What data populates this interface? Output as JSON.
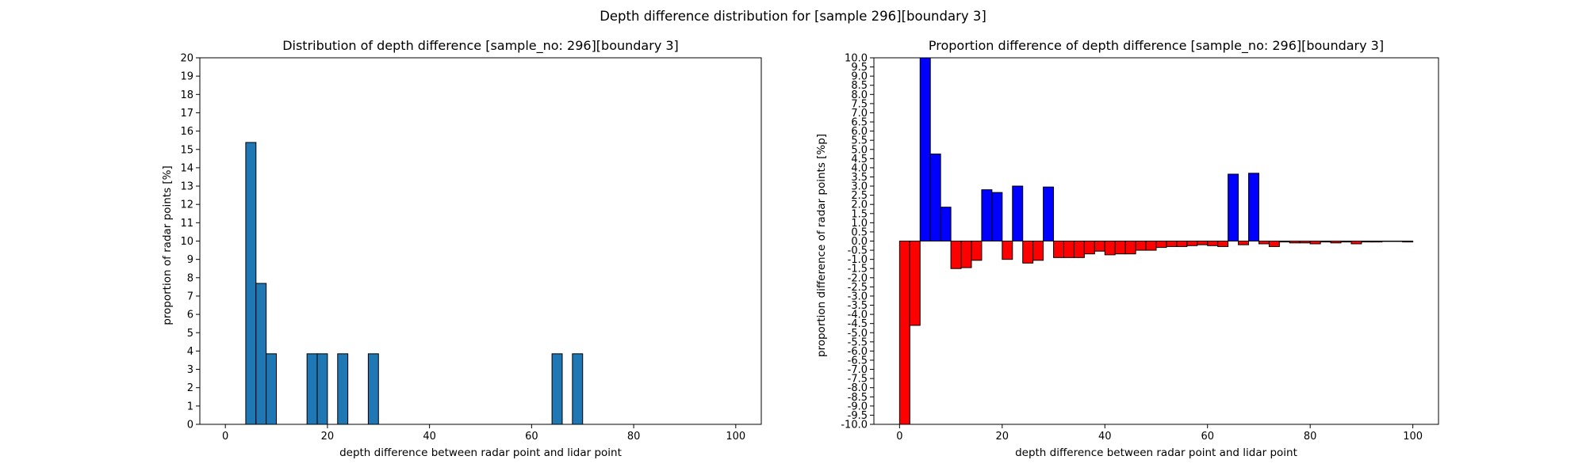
{
  "figure": {
    "suptitle": "Depth difference distribution for [sample 296][boundary 3]"
  },
  "chart_data": [
    {
      "type": "bar",
      "title": "Distribution of depth difference [sample_no: 296][boundary 3]",
      "xlabel": "depth difference between radar point and lidar point",
      "ylabel": "proportion of radar points [%]",
      "xlim": [
        -5,
        105
      ],
      "ylim": [
        0,
        20
      ],
      "x_ticks": [
        0,
        20,
        40,
        60,
        80,
        100
      ],
      "y_ticks": [
        0,
        1,
        2,
        3,
        4,
        5,
        6,
        7,
        8,
        9,
        10,
        11,
        12,
        13,
        14,
        15,
        16,
        17,
        18,
        19,
        20
      ],
      "bin_width": 2,
      "colors": {
        "bar": "#1f77b4",
        "edge": "#000000"
      },
      "bars": [
        {
          "x": 5,
          "value": 15.38
        },
        {
          "x": 7,
          "value": 7.69
        },
        {
          "x": 9,
          "value": 3.85
        },
        {
          "x": 17,
          "value": 3.85
        },
        {
          "x": 19,
          "value": 3.85
        },
        {
          "x": 23,
          "value": 3.85
        },
        {
          "x": 29,
          "value": 3.85
        },
        {
          "x": 65,
          "value": 3.85
        },
        {
          "x": 69,
          "value": 3.85
        }
      ],
      "grid": false
    },
    {
      "type": "bar",
      "title": "Proportion difference of depth difference [sample_no: 296][boundary 3]",
      "xlabel": "depth difference between radar point and lidar point",
      "ylabel": "proportion difference of radar points [%p]",
      "xlim": [
        -5,
        105
      ],
      "ylim": [
        -10.0,
        10.0
      ],
      "x_ticks": [
        0,
        20,
        40,
        60,
        80,
        100
      ],
      "y_ticks": [
        "-10.0",
        "-9.5",
        "-9.0",
        "-8.5",
        "-8.0",
        "-7.5",
        "-7.0",
        "-6.5",
        "-6.0",
        "-5.5",
        "-5.0",
        "-4.5",
        "-4.0",
        "-3.5",
        "-3.0",
        "-2.5",
        "-2.0",
        "-1.5",
        "-1.0",
        "-0.5",
        "0.0",
        "0.5",
        "1.0",
        "1.5",
        "2.0",
        "2.5",
        "3.0",
        "3.5",
        "4.0",
        "4.5",
        "5.0",
        "5.5",
        "6.0",
        "6.5",
        "7.0",
        "7.5",
        "8.0",
        "8.5",
        "9.0",
        "9.5",
        "10.0"
      ],
      "bin_width": 2,
      "colors": {
        "positive": "#0000ff",
        "negative": "#ff0000",
        "edge": "#000000"
      },
      "bars": [
        {
          "x": 1,
          "value": -10.0
        },
        {
          "x": 3,
          "value": -4.6
        },
        {
          "x": 5,
          "value": 10.0
        },
        {
          "x": 7,
          "value": 4.75
        },
        {
          "x": 9,
          "value": 1.85
        },
        {
          "x": 11,
          "value": -1.5
        },
        {
          "x": 13,
          "value": -1.45
        },
        {
          "x": 15,
          "value": -1.05
        },
        {
          "x": 17,
          "value": 2.8
        },
        {
          "x": 19,
          "value": 2.65
        },
        {
          "x": 21,
          "value": -1.0
        },
        {
          "x": 23,
          "value": 3.0
        },
        {
          "x": 25,
          "value": -1.2
        },
        {
          "x": 27,
          "value": -1.05
        },
        {
          "x": 29,
          "value": 2.95
        },
        {
          "x": 31,
          "value": -0.9
        },
        {
          "x": 33,
          "value": -0.9
        },
        {
          "x": 35,
          "value": -0.9
        },
        {
          "x": 37,
          "value": -0.7
        },
        {
          "x": 39,
          "value": -0.55
        },
        {
          "x": 41,
          "value": -0.75
        },
        {
          "x": 43,
          "value": -0.7
        },
        {
          "x": 45,
          "value": -0.7
        },
        {
          "x": 47,
          "value": -0.5
        },
        {
          "x": 49,
          "value": -0.5
        },
        {
          "x": 51,
          "value": -0.35
        },
        {
          "x": 53,
          "value": -0.3
        },
        {
          "x": 55,
          "value": -0.3
        },
        {
          "x": 57,
          "value": -0.25
        },
        {
          "x": 59,
          "value": -0.2
        },
        {
          "x": 61,
          "value": -0.25
        },
        {
          "x": 63,
          "value": -0.3
        },
        {
          "x": 65,
          "value": 3.65
        },
        {
          "x": 67,
          "value": -0.2
        },
        {
          "x": 69,
          "value": 3.7
        },
        {
          "x": 71,
          "value": -0.15
        },
        {
          "x": 73,
          "value": -0.3
        },
        {
          "x": 75,
          "value": -0.05
        },
        {
          "x": 77,
          "value": -0.1
        },
        {
          "x": 79,
          "value": -0.1
        },
        {
          "x": 81,
          "value": -0.15
        },
        {
          "x": 83,
          "value": -0.05
        },
        {
          "x": 85,
          "value": -0.1
        },
        {
          "x": 87,
          "value": -0.05
        },
        {
          "x": 89,
          "value": -0.15
        },
        {
          "x": 91,
          "value": -0.05
        },
        {
          "x": 93,
          "value": -0.05
        },
        {
          "x": 95,
          "value": -0.02
        },
        {
          "x": 97,
          "value": -0.02
        },
        {
          "x": 99,
          "value": -0.05
        }
      ],
      "grid": false
    }
  ]
}
